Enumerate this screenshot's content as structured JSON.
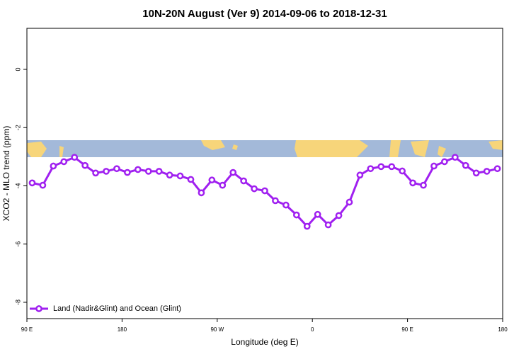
{
  "chart_data": {
    "type": "line",
    "title": "10N-20N August (Ver 9)   2014-09-06 to 2018-12-31",
    "xlabel": "Longitude (deg E)",
    "ylabel": "XCO2 - MLO trend (ppm)",
    "x": [
      95,
      105,
      115,
      125,
      135,
      145,
      155,
      165,
      175,
      185,
      195,
      205,
      215,
      225,
      235,
      245,
      255,
      265,
      275,
      285,
      295,
      305,
      315,
      325,
      335,
      345,
      355,
      365,
      375,
      385,
      395,
      405,
      415,
      425,
      435,
      445,
      455,
      465,
      475,
      485,
      495,
      505,
      515,
      525,
      535
    ],
    "series": [
      {
        "name": "Land (Nadir&Glint) and Ocean (Glint)",
        "color": "#a020f0",
        "values": [
          -3.9,
          -3.98,
          -3.32,
          -3.17,
          -3.02,
          -3.3,
          -3.56,
          -3.5,
          -3.41,
          -3.54,
          -3.44,
          -3.5,
          -3.5,
          -3.63,
          -3.66,
          -3.78,
          -4.24,
          -3.8,
          -3.98,
          -3.54,
          -3.83,
          -4.1,
          -4.17,
          -4.51,
          -4.66,
          -5.0,
          -5.39,
          -4.98,
          -5.34,
          -5.02,
          -4.56,
          -3.63,
          -3.41,
          -3.34,
          -3.34,
          -3.49,
          -3.9,
          -3.98,
          -3.32,
          -3.17,
          -3.02,
          -3.3,
          -3.56,
          -3.5,
          -3.41
        ]
      }
    ],
    "xlim": [
      90,
      540
    ],
    "xticks": [
      {
        "value": 90,
        "label": "90 E"
      },
      180,
      {
        "value": 270,
        "label": "90 W"
      },
      {
        "value": 360,
        "label": "0"
      },
      {
        "value": 450,
        "label": "90 E"
      },
      {
        "value": 540,
        "label": "180"
      }
    ],
    "ylim": [
      -8.56,
      1.41
    ],
    "yticks": [
      0,
      -2,
      -4,
      -6,
      -8
    ],
    "legend": "bottom-left"
  }
}
